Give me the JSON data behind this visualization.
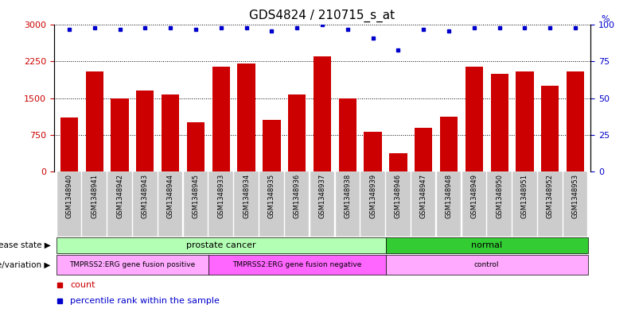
{
  "title": "GDS4824 / 210715_s_at",
  "samples": [
    "GSM1348940",
    "GSM1348941",
    "GSM1348942",
    "GSM1348943",
    "GSM1348944",
    "GSM1348945",
    "GSM1348933",
    "GSM1348934",
    "GSM1348935",
    "GSM1348936",
    "GSM1348937",
    "GSM1348938",
    "GSM1348939",
    "GSM1348946",
    "GSM1348947",
    "GSM1348948",
    "GSM1348949",
    "GSM1348950",
    "GSM1348951",
    "GSM1348952",
    "GSM1348953"
  ],
  "counts": [
    1100,
    2050,
    1500,
    1650,
    1580,
    1000,
    2150,
    2200,
    1050,
    1580,
    2350,
    1500,
    820,
    380,
    900,
    1120,
    2150,
    2000,
    2050,
    1750,
    2050
  ],
  "percentiles": [
    97,
    98,
    97,
    98,
    98,
    97,
    98,
    98,
    96,
    98,
    100,
    97,
    91,
    83,
    97,
    96,
    98,
    98,
    98,
    98,
    98
  ],
  "ylim_left": [
    0,
    3000
  ],
  "ylim_right": [
    0,
    100
  ],
  "yticks_left": [
    0,
    750,
    1500,
    2250,
    3000
  ],
  "yticks_right": [
    0,
    25,
    50,
    75,
    100
  ],
  "bar_color": "#cc0000",
  "dot_color": "#0000cc",
  "bg_color": "#ffffff",
  "tick_box_color": "#cccccc",
  "disease_state_groups": [
    {
      "label": "prostate cancer",
      "start": 0,
      "end": 13,
      "color": "#b3ffb3"
    },
    {
      "label": "normal",
      "start": 13,
      "end": 21,
      "color": "#33cc33"
    }
  ],
  "genotype_groups": [
    {
      "label": "TMPRSS2:ERG gene fusion positive",
      "start": 0,
      "end": 6,
      "color": "#ffaaff"
    },
    {
      "label": "TMPRSS2:ERG gene fusion negative",
      "start": 6,
      "end": 13,
      "color": "#ff66ff"
    },
    {
      "label": "control",
      "start": 13,
      "end": 21,
      "color": "#ffaaff"
    }
  ],
  "label_disease_state": "disease state",
  "label_genotype": "genotype/variation",
  "legend_count": "count",
  "legend_percentile": "percentile rank within the sample",
  "title_fontsize": 11,
  "axis_label_color_left": "#cc0000",
  "axis_label_color_right": "#0000cc"
}
